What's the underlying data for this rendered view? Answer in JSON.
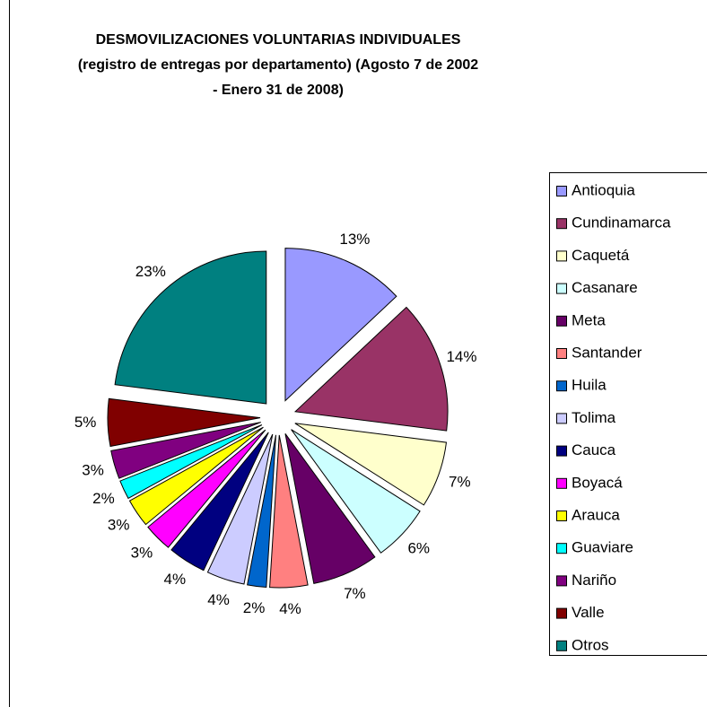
{
  "chart_data": {
    "type": "pie",
    "title": [
      "DESMOVILIZACIONES VOLUNTARIAS INDIVIDUALES",
      "(registro de entregas por departamento) (Agosto 7 de 2002",
      "- Enero 31 de 2008)"
    ],
    "categories": [
      "Antioquia",
      "Cundinamarca",
      "Caquetá",
      "Casanare",
      "Meta",
      "Santander",
      "Huila",
      "Tolima",
      "Cauca",
      "Boyacá",
      "Arauca",
      "Guaviare",
      "Nariño",
      "Valle",
      "Otros"
    ],
    "values": [
      13,
      14,
      7,
      6,
      7,
      4,
      2,
      4,
      4,
      3,
      3,
      2,
      3,
      5,
      23
    ],
    "value_labels": [
      "13%",
      "14%",
      "7%",
      "6%",
      "7%",
      "4%",
      "2%",
      "4%",
      "4%",
      "3%",
      "3%",
      "2%",
      "3%",
      "5%",
      "23%"
    ],
    "colors": [
      "#9999ff",
      "#993366",
      "#ffffcc",
      "#ccffff",
      "#660066",
      "#ff8080",
      "#0066cc",
      "#ccccff",
      "#000080",
      "#ff00ff",
      "#ffff00",
      "#00ffff",
      "#800080",
      "#800000",
      "#008080"
    ],
    "legend": "right"
  }
}
